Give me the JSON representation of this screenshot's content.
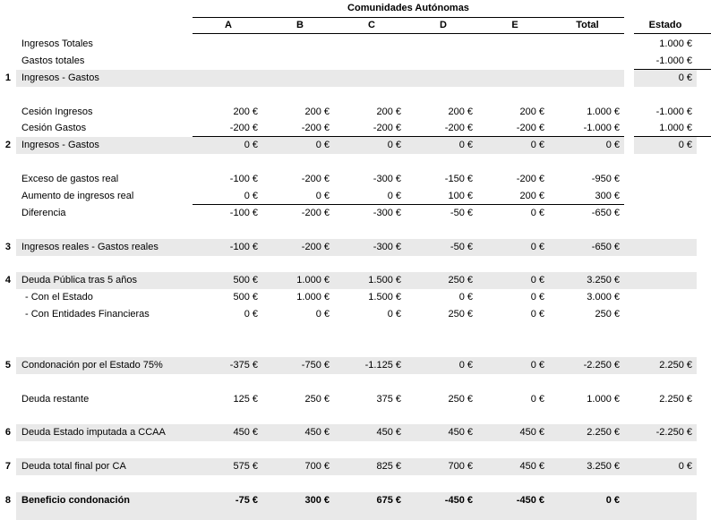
{
  "table": {
    "title": "Comunidades Autónomas",
    "columns": [
      "A",
      "B",
      "C",
      "D",
      "E",
      "Total"
    ],
    "estado_header": "Estado",
    "rows": [
      {
        "num": "",
        "label": "Ingresos Totales",
        "values": [
          "",
          "",
          "",
          "",
          "",
          ""
        ],
        "estado": "1.000 €",
        "gray": false,
        "bold": false,
        "indent": false,
        "ul_ccaa": false,
        "ul_estado": false,
        "spacer_white": false
      },
      {
        "num": "",
        "label": "Gastos totales",
        "values": [
          "",
          "",
          "",
          "",
          "",
          ""
        ],
        "estado": "-1.000 €",
        "gray": false,
        "bold": false,
        "indent": false,
        "ul_ccaa": false,
        "ul_estado": true,
        "spacer_white": false
      },
      {
        "num": "1",
        "label": "Ingresos - Gastos",
        "values": [
          "",
          "",
          "",
          "",
          "",
          ""
        ],
        "estado": "0 €",
        "gray": true,
        "bold": false,
        "indent": false,
        "ul_ccaa": false,
        "ul_estado": false,
        "spacer_white": true
      },
      {
        "num": "",
        "label": "",
        "values": [
          "",
          "",
          "",
          "",
          "",
          ""
        ],
        "estado": "",
        "gray": false,
        "bold": false,
        "indent": false,
        "ul_ccaa": false,
        "ul_estado": false,
        "spacer_white": false
      },
      {
        "num": "",
        "label": "Cesión Ingresos",
        "values": [
          "200 €",
          "200 €",
          "200 €",
          "200 €",
          "200 €",
          "1.000 €"
        ],
        "estado": "-1.000 €",
        "gray": false,
        "bold": false,
        "indent": false,
        "ul_ccaa": false,
        "ul_estado": false,
        "spacer_white": false
      },
      {
        "num": "",
        "label": "Cesión Gastos",
        "values": [
          "-200 €",
          "-200 €",
          "-200 €",
          "-200 €",
          "-200 €",
          "-1.000 €"
        ],
        "estado": "1.000 €",
        "gray": false,
        "bold": false,
        "indent": false,
        "ul_ccaa": true,
        "ul_estado": true,
        "spacer_white": false
      },
      {
        "num": "2",
        "label": "Ingresos - Gastos",
        "values": [
          "0 €",
          "0 €",
          "0 €",
          "0 €",
          "0 €",
          "0 €"
        ],
        "estado": "0 €",
        "gray": true,
        "bold": false,
        "indent": false,
        "ul_ccaa": false,
        "ul_estado": false,
        "spacer_white": true
      },
      {
        "num": "",
        "label": "",
        "values": [
          "",
          "",
          "",
          "",
          "",
          ""
        ],
        "estado": "",
        "gray": false,
        "bold": false,
        "indent": false,
        "ul_ccaa": false,
        "ul_estado": false,
        "spacer_white": false
      },
      {
        "num": "",
        "label": "Exceso de gastos real",
        "values": [
          "-100 €",
          "-200 €",
          "-300 €",
          "-150 €",
          "-200 €",
          "-950 €"
        ],
        "estado": "",
        "gray": false,
        "bold": false,
        "indent": false,
        "ul_ccaa": false,
        "ul_estado": false,
        "spacer_white": false
      },
      {
        "num": "",
        "label": "Aumento de ingresos real",
        "values": [
          "0 €",
          "0 €",
          "0 €",
          "100 €",
          "200 €",
          "300 €"
        ],
        "estado": "",
        "gray": false,
        "bold": false,
        "indent": false,
        "ul_ccaa": true,
        "ul_estado": false,
        "spacer_white": false
      },
      {
        "num": "",
        "label": "Diferencia",
        "values": [
          "-100 €",
          "-200 €",
          "-300 €",
          "-50 €",
          "0 €",
          "-650 €"
        ],
        "estado": "",
        "gray": false,
        "bold": false,
        "indent": false,
        "ul_ccaa": false,
        "ul_estado": false,
        "spacer_white": false
      },
      {
        "num": "",
        "label": "",
        "values": [
          "",
          "",
          "",
          "",
          "",
          ""
        ],
        "estado": "",
        "gray": false,
        "bold": false,
        "indent": false,
        "ul_ccaa": false,
        "ul_estado": false,
        "spacer_white": false
      },
      {
        "num": "3",
        "label": "Ingresos reales - Gastos reales",
        "values": [
          "-100 €",
          "-200 €",
          "-300 €",
          "-50 €",
          "0 €",
          "-650 €"
        ],
        "estado": "",
        "gray": true,
        "bold": false,
        "indent": false,
        "ul_ccaa": false,
        "ul_estado": false,
        "spacer_white": false
      },
      {
        "num": "",
        "label": "",
        "values": [
          "",
          "",
          "",
          "",
          "",
          ""
        ],
        "estado": "",
        "gray": false,
        "bold": false,
        "indent": false,
        "ul_ccaa": false,
        "ul_estado": false,
        "spacer_white": false
      },
      {
        "num": "4",
        "label": "Deuda Pública tras 5 años",
        "values": [
          "500 €",
          "1.000 €",
          "1.500 €",
          "250 €",
          "0 €",
          "3.250 €"
        ],
        "estado": "",
        "gray": true,
        "bold": false,
        "indent": false,
        "ul_ccaa": false,
        "ul_estado": false,
        "spacer_white": false
      },
      {
        "num": "",
        "label": "- Con el Estado",
        "values": [
          "500 €",
          "1.000 €",
          "1.500 €",
          "0 €",
          "0 €",
          "3.000 €"
        ],
        "estado": "",
        "gray": false,
        "bold": false,
        "indent": true,
        "ul_ccaa": false,
        "ul_estado": false,
        "spacer_white": false
      },
      {
        "num": "",
        "label": "- Con Entidades Financieras",
        "values": [
          "0 €",
          "0 €",
          "0 €",
          "250 €",
          "0 €",
          "250 €"
        ],
        "estado": "",
        "gray": false,
        "bold": false,
        "indent": true,
        "ul_ccaa": false,
        "ul_estado": false,
        "spacer_white": false
      },
      {
        "num": "",
        "label": "",
        "values": [
          "",
          "",
          "",
          "",
          "",
          ""
        ],
        "estado": "",
        "gray": false,
        "bold": false,
        "indent": false,
        "ul_ccaa": false,
        "ul_estado": false,
        "spacer_white": false
      },
      {
        "num": "",
        "label": "",
        "values": [
          "",
          "",
          "",
          "",
          "",
          ""
        ],
        "estado": "",
        "gray": false,
        "bold": false,
        "indent": false,
        "ul_ccaa": false,
        "ul_estado": false,
        "spacer_white": false
      },
      {
        "num": "5",
        "label": "Condonación por el Estado 75%",
        "values": [
          "-375 €",
          "-750 €",
          "-1.125 €",
          "0 €",
          "0 €",
          "-2.250 €"
        ],
        "estado": "2.250 €",
        "gray": true,
        "bold": false,
        "indent": false,
        "ul_ccaa": false,
        "ul_estado": false,
        "spacer_white": false
      },
      {
        "num": "",
        "label": "",
        "values": [
          "",
          "",
          "",
          "",
          "",
          ""
        ],
        "estado": "",
        "gray": false,
        "bold": false,
        "indent": false,
        "ul_ccaa": false,
        "ul_estado": false,
        "spacer_white": false
      },
      {
        "num": "",
        "label": "Deuda restante",
        "values": [
          "125 €",
          "250 €",
          "375 €",
          "250 €",
          "0 €",
          "1.000 €"
        ],
        "estado": "2.250 €",
        "gray": false,
        "bold": false,
        "indent": false,
        "ul_ccaa": false,
        "ul_estado": false,
        "spacer_white": false
      },
      {
        "num": "",
        "label": "",
        "values": [
          "",
          "",
          "",
          "",
          "",
          ""
        ],
        "estado": "",
        "gray": false,
        "bold": false,
        "indent": false,
        "ul_ccaa": false,
        "ul_estado": false,
        "spacer_white": false
      },
      {
        "num": "6",
        "label": "Deuda Estado imputada a CCAA",
        "values": [
          "450 €",
          "450 €",
          "450 €",
          "450 €",
          "450 €",
          "2.250 €"
        ],
        "estado": "-2.250 €",
        "gray": true,
        "bold": false,
        "indent": false,
        "ul_ccaa": false,
        "ul_estado": false,
        "spacer_white": false
      },
      {
        "num": "",
        "label": "",
        "values": [
          "",
          "",
          "",
          "",
          "",
          ""
        ],
        "estado": "",
        "gray": false,
        "bold": false,
        "indent": false,
        "ul_ccaa": false,
        "ul_estado": false,
        "spacer_white": false
      },
      {
        "num": "7",
        "label": "Deuda total final por CA",
        "values": [
          "575 €",
          "700 €",
          "825 €",
          "700 €",
          "450 €",
          "3.250 €"
        ],
        "estado": "0 €",
        "gray": true,
        "bold": false,
        "indent": false,
        "ul_ccaa": false,
        "ul_estado": false,
        "spacer_white": false
      },
      {
        "num": "",
        "label": "",
        "values": [
          "",
          "",
          "",
          "",
          "",
          ""
        ],
        "estado": "",
        "gray": false,
        "bold": false,
        "indent": false,
        "ul_ccaa": false,
        "ul_estado": false,
        "spacer_white": false
      },
      {
        "num": "8",
        "label": "Beneficio condonación",
        "values": [
          "-75 €",
          "300 €",
          "675 €",
          "-450 €",
          "-450 €",
          "0 €"
        ],
        "estado": "",
        "gray": true,
        "bold": true,
        "indent": false,
        "ul_ccaa": false,
        "ul_estado": false,
        "spacer_white": false
      },
      {
        "num": "",
        "label": "",
        "values": [
          "",
          "",
          "",
          "",
          "",
          ""
        ],
        "estado": "",
        "gray": true,
        "bold": false,
        "indent": false,
        "ul_ccaa": false,
        "ul_estado": false,
        "spacer_white": false
      }
    ]
  },
  "colors": {
    "row_highlight": "#e9e9e9",
    "border": "#000000",
    "text": "#000000",
    "background": "#ffffff"
  }
}
